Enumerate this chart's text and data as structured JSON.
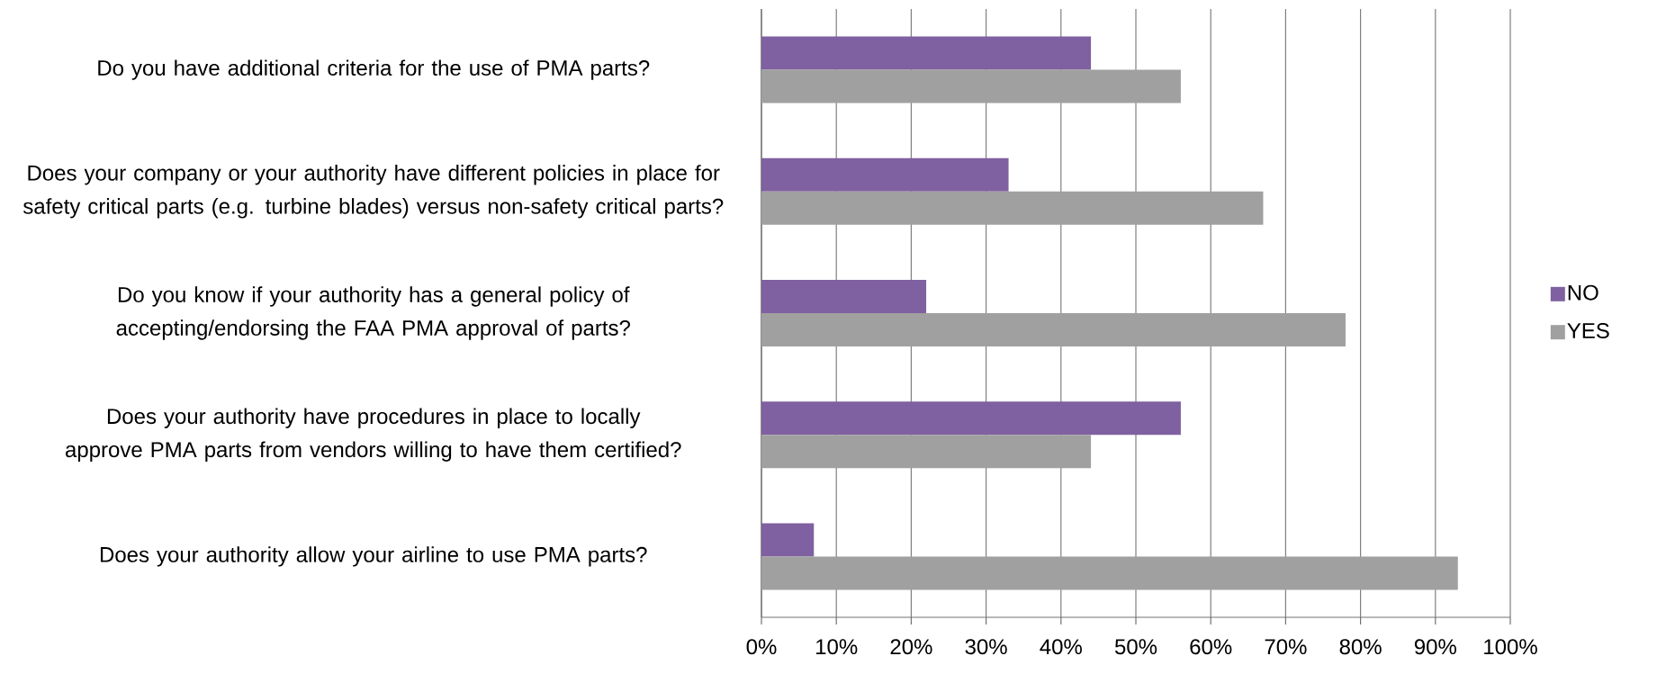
{
  "chart_data": {
    "type": "bar",
    "orientation": "horizontal",
    "categories": [
      "Do you have additional criteria for the use of PMA parts?",
      "Does your company or your authority have different policies in place for safety critical parts (e.g. turbine blades) versus non-safety critical parts?",
      "Do you know if your authority has a general policy of accepting/endorsing the FAA PMA approval of parts?",
      "Does your authority have procedures in place to locally approve PMA parts from vendors willing to have them certified?",
      "Does your authority allow your airline to use PMA parts?"
    ],
    "series": [
      {
        "name": "NO",
        "color": "#7f60a0",
        "values": [
          44,
          33,
          22,
          56,
          7
        ]
      },
      {
        "name": "YES",
        "color": "#a0a0a0",
        "values": [
          56,
          67,
          78,
          44,
          93
        ]
      }
    ],
    "xlim": [
      0,
      100
    ],
    "xticks": [
      {
        "value": 0,
        "label": "0%"
      },
      {
        "value": 10,
        "label": "10%"
      },
      {
        "value": 20,
        "label": "20%"
      },
      {
        "value": 30,
        "label": "30%"
      },
      {
        "value": 40,
        "label": "40%"
      },
      {
        "value": 50,
        "label": "50%"
      },
      {
        "value": 60,
        "label": "60%"
      },
      {
        "value": 70,
        "label": "70%"
      },
      {
        "value": 80,
        "label": "80%"
      },
      {
        "value": 90,
        "label": "90%"
      },
      {
        "value": 100,
        "label": "100%"
      }
    ],
    "grid": "x",
    "legend": "right"
  }
}
